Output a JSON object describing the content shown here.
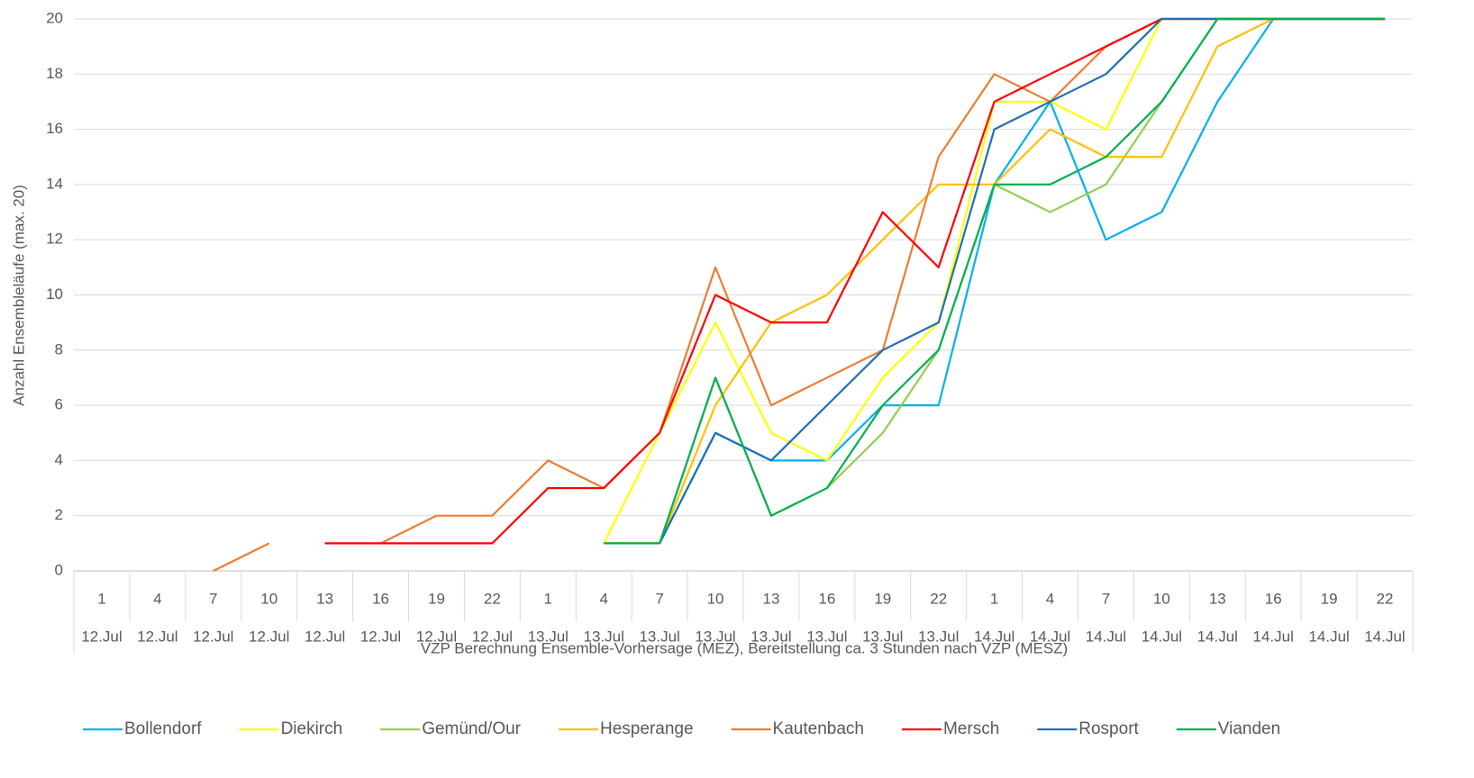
{
  "chart_data": {
    "type": "line",
    "x_label": "VZP Berechnung Ensemble-Vorhersage (MEZ), Bereitstellung ca. 3 Stunden nach VZP (MESZ)",
    "y_label": "Anzahl Ensembleläufe (max. 20)",
    "categories": [
      "1",
      "4",
      "7",
      "10",
      "13",
      "16",
      "19",
      "22",
      "1",
      "4",
      "7",
      "10",
      "13",
      "16",
      "19",
      "22",
      "1",
      "4",
      "7",
      "10",
      "13",
      "16",
      "19",
      "22"
    ],
    "dates": [
      "12.Jul",
      "12.Jul",
      "12.Jul",
      "12.Jul",
      "12.Jul",
      "12.Jul",
      "12.Jul",
      "12.Jul",
      "13.Jul",
      "13.Jul",
      "13.Jul",
      "13.Jul",
      "13.Jul",
      "13.Jul",
      "13.Jul",
      "13.Jul",
      "14.Jul",
      "14.Jul",
      "14.Jul",
      "14.Jul",
      "14.Jul",
      "14.Jul",
      "14.Jul",
      "14.Jul"
    ],
    "ylim": [
      0,
      20
    ],
    "yticks": [
      0,
      2,
      4,
      6,
      8,
      10,
      12,
      14,
      16,
      18,
      20
    ],
    "grid": true,
    "legend": "bottom",
    "series": [
      {
        "name": "Bollendorf",
        "color": "#00b0f0",
        "values": [
          null,
          null,
          null,
          null,
          null,
          null,
          null,
          null,
          null,
          null,
          1,
          5,
          4,
          4,
          6,
          6,
          14,
          17,
          12,
          13,
          17,
          20,
          20,
          20
        ]
      },
      {
        "name": "Diekirch",
        "color": "#ffff00",
        "values": [
          null,
          null,
          null,
          null,
          null,
          null,
          null,
          null,
          null,
          1,
          5,
          9,
          5,
          4,
          7,
          9,
          17,
          17,
          16,
          20,
          20,
          20,
          20,
          20
        ]
      },
      {
        "name": "Gemünd/Our",
        "color": "#92d050",
        "values": [
          null,
          null,
          null,
          null,
          null,
          null,
          null,
          null,
          null,
          1,
          1,
          7,
          2,
          3,
          5,
          8,
          14,
          13,
          14,
          17,
          20,
          20,
          20,
          20
        ]
      },
      {
        "name": "Hesperange",
        "color": "#ffc000",
        "values": [
          null,
          null,
          null,
          null,
          null,
          null,
          null,
          null,
          null,
          1,
          1,
          6,
          9,
          10,
          12,
          14,
          14,
          16,
          15,
          15,
          19,
          20,
          20,
          20
        ]
      },
      {
        "name": "Kautenbach",
        "color": "#ed7d31",
        "values": [
          null,
          null,
          0,
          1,
          null,
          1,
          2,
          2,
          4,
          3,
          5,
          11,
          6,
          7,
          8,
          15,
          18,
          17,
          19,
          20,
          20,
          20,
          20,
          20
        ]
      },
      {
        "name": "Mersch",
        "color": "#ff0000",
        "values": [
          null,
          null,
          null,
          null,
          1,
          1,
          1,
          1,
          3,
          3,
          5,
          10,
          9,
          9,
          13,
          11,
          17,
          18,
          19,
          20,
          20,
          20,
          20,
          20
        ]
      },
      {
        "name": "Rosport",
        "color": "#1f6fb8",
        "values": [
          null,
          null,
          null,
          null,
          null,
          null,
          null,
          null,
          null,
          null,
          1,
          5,
          4,
          6,
          8,
          9,
          16,
          17,
          18,
          20,
          20,
          20,
          20,
          20
        ]
      },
      {
        "name": "Vianden",
        "color": "#00b050",
        "values": [
          null,
          null,
          null,
          null,
          null,
          null,
          null,
          null,
          null,
          1,
          1,
          7,
          2,
          3,
          6,
          8,
          14,
          14,
          15,
          17,
          20,
          20,
          20,
          20
        ]
      }
    ]
  }
}
